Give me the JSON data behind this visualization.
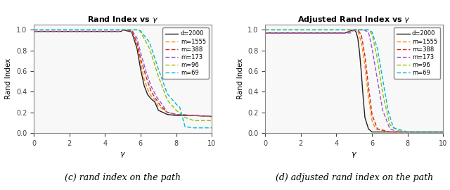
{
  "title_left": "Rand Index vs $\\gamma$",
  "title_right": "Adjusted Rand Index vs $\\gamma$",
  "xlabel": "$\\gamma$",
  "ylabel": "Rand Index",
  "caption_left": "(c) rand index on the path",
  "caption_right": "(d) adjusted rand index on the path",
  "xlim": [
    0,
    10
  ],
  "ylim": [
    0,
    1.05
  ],
  "yticks": [
    0,
    0.2,
    0.4,
    0.6,
    0.8,
    1.0
  ],
  "xticks": [
    0,
    2,
    4,
    6,
    8,
    10
  ],
  "legend_labels": [
    "d=2000",
    "m=1555",
    "m=388",
    "m=173",
    "m=96",
    "m=69"
  ],
  "colors": [
    "#222222",
    "#ff8800",
    "#cc2222",
    "#9955cc",
    "#99bb00",
    "#00bbcc"
  ],
  "linestyles_dash": [
    false,
    true,
    true,
    true,
    true,
    true
  ],
  "linewidths": [
    1.0,
    1.0,
    1.0,
    1.0,
    1.0,
    1.0
  ],
  "rand_index_data": [
    {
      "x": [
        0.0,
        4.9,
        5.0,
        5.5,
        5.8,
        6.0,
        6.2,
        6.4,
        6.6,
        6.8,
        7.0,
        7.5,
        8.0,
        9.0,
        10.0
      ],
      "y": [
        0.985,
        0.985,
        1.0,
        0.98,
        0.82,
        0.62,
        0.46,
        0.37,
        0.33,
        0.3,
        0.22,
        0.18,
        0.17,
        0.17,
        0.16
      ]
    },
    {
      "x": [
        0.0,
        4.9,
        5.0,
        5.5,
        5.8,
        6.0,
        6.2,
        6.5,
        6.8,
        7.0,
        7.5,
        8.0,
        9.0,
        10.0
      ],
      "y": [
        0.985,
        0.985,
        1.0,
        0.99,
        0.86,
        0.68,
        0.52,
        0.38,
        0.32,
        0.26,
        0.2,
        0.18,
        0.17,
        0.16
      ]
    },
    {
      "x": [
        0.0,
        4.9,
        5.0,
        5.5,
        5.8,
        6.0,
        6.3,
        6.6,
        6.9,
        7.1,
        7.5,
        8.0,
        9.0,
        10.0
      ],
      "y": [
        0.985,
        0.985,
        1.0,
        0.99,
        0.88,
        0.72,
        0.55,
        0.4,
        0.32,
        0.27,
        0.2,
        0.18,
        0.17,
        0.16
      ]
    },
    {
      "x": [
        0.0,
        4.9,
        5.0,
        5.5,
        5.8,
        6.0,
        6.3,
        6.6,
        6.9,
        7.2,
        7.5,
        8.0,
        9.0,
        10.0
      ],
      "y": [
        0.985,
        0.985,
        1.0,
        1.0,
        0.92,
        0.78,
        0.6,
        0.45,
        0.35,
        0.28,
        0.2,
        0.18,
        0.17,
        0.16
      ]
    },
    {
      "x": [
        0.0,
        5.9,
        6.0,
        6.5,
        7.0,
        7.5,
        8.0,
        8.5,
        9.0,
        10.0
      ],
      "y": [
        1.0,
        1.0,
        0.98,
        0.82,
        0.55,
        0.32,
        0.22,
        0.15,
        0.12,
        0.12
      ]
    },
    {
      "x": [
        0.0,
        5.9,
        6.0,
        6.5,
        7.0,
        7.5,
        8.0,
        8.2,
        8.5,
        9.0,
        9.5,
        10.0
      ],
      "y": [
        1.0,
        1.0,
        0.99,
        0.88,
        0.62,
        0.38,
        0.28,
        0.25,
        0.06,
        0.05,
        0.05,
        0.05
      ]
    }
  ],
  "adj_rand_index_data": [
    {
      "x": [
        0.0,
        4.5,
        4.8,
        5.0,
        5.1,
        5.2,
        5.3,
        5.4,
        5.5,
        5.6,
        5.8,
        6.0,
        7.0,
        10.0
      ],
      "y": [
        0.97,
        0.97,
        0.99,
        1.0,
        0.98,
        0.92,
        0.78,
        0.58,
        0.35,
        0.15,
        0.04,
        0.01,
        0.01,
        0.01
      ]
    },
    {
      "x": [
        0.0,
        4.5,
        4.8,
        5.0,
        5.2,
        5.4,
        5.6,
        5.8,
        6.0,
        6.2,
        7.0,
        10.0
      ],
      "y": [
        0.97,
        0.97,
        0.99,
        1.0,
        0.99,
        0.88,
        0.65,
        0.35,
        0.12,
        0.04,
        0.01,
        0.01
      ]
    },
    {
      "x": [
        0.0,
        4.5,
        4.8,
        5.0,
        5.2,
        5.4,
        5.6,
        5.8,
        6.0,
        6.3,
        7.0,
        10.0
      ],
      "y": [
        0.97,
        0.97,
        0.99,
        1.0,
        1.0,
        0.95,
        0.75,
        0.45,
        0.18,
        0.04,
        0.01,
        0.01
      ]
    },
    {
      "x": [
        0.0,
        4.8,
        5.0,
        5.5,
        5.8,
        6.0,
        6.3,
        6.6,
        7.0,
        7.5,
        10.0
      ],
      "y": [
        0.97,
        0.97,
        1.0,
        1.0,
        0.98,
        0.82,
        0.52,
        0.22,
        0.04,
        0.01,
        0.01
      ]
    },
    {
      "x": [
        0.0,
        5.5,
        5.8,
        6.0,
        6.3,
        6.6,
        7.0,
        7.5,
        8.0,
        10.0
      ],
      "y": [
        1.0,
        1.0,
        1.0,
        0.96,
        0.72,
        0.38,
        0.08,
        0.02,
        0.01,
        0.01
      ]
    },
    {
      "x": [
        0.0,
        5.5,
        5.8,
        6.0,
        6.3,
        6.6,
        6.9,
        7.2,
        7.8,
        8.0,
        10.0
      ],
      "y": [
        1.0,
        1.0,
        1.0,
        0.98,
        0.82,
        0.52,
        0.22,
        0.05,
        0.02,
        0.01,
        0.01
      ]
    }
  ]
}
